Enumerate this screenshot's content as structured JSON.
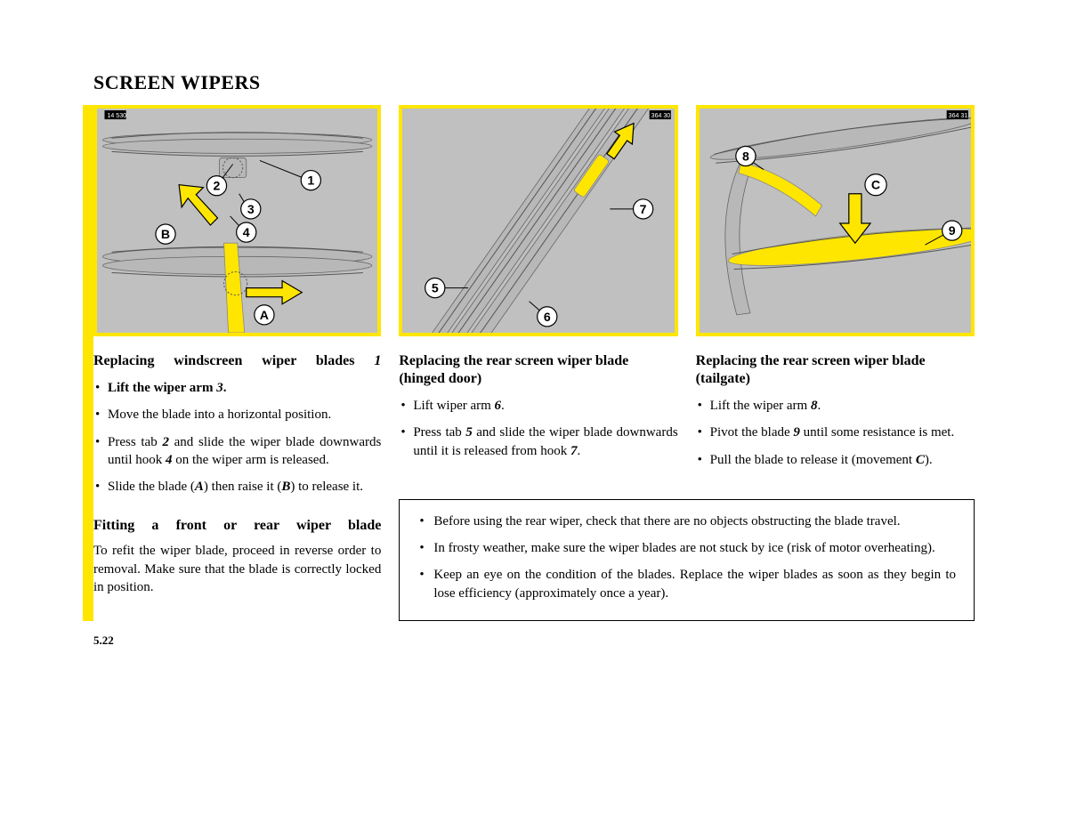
{
  "title": "SCREEN WIPERS",
  "pageNumber": "5.22",
  "col1": {
    "imgRef": "14 530",
    "heading_pre": "Replacing windscreen wiper blades ",
    "heading_num": "1",
    "steps": [
      {
        "html": "<span class=\"bold\">Lift the wiper arm <span class=\"ital\">3</span>.</span>"
      },
      {
        "html": "Move the blade into a horizontal position."
      },
      {
        "html": "Press tab <span class=\"ital\">2</span> and slide the wiper blade downwards until hook <span class=\"ital\">4</span> on the wiper arm is released."
      },
      {
        "html": "Slide the blade (<span class=\"ital\">A</span>) then raise it (<span class=\"ital\">B</span>) to release it."
      }
    ],
    "subheading": "Fitting a front or rear wiper blade",
    "subtext": "To refit the wiper blade, proceed in reverse order to removal. Make sure that the blade is correctly locked in position.",
    "labels": {
      "1": "1",
      "2": "2",
      "3": "3",
      "4": "4",
      "A": "A",
      "B": "B"
    }
  },
  "col2": {
    "imgRef": "364 30",
    "heading": "Replacing the rear screen wiper blade (hinged door)",
    "steps": [
      {
        "html": "Lift wiper arm <span class=\"ital\">6</span>."
      },
      {
        "html": "Press tab <span class=\"ital\">5</span> and slide the wiper blade downwards until it is released from hook <span class=\"ital\">7</span>."
      }
    ],
    "labels": {
      "5": "5",
      "6": "6",
      "7": "7"
    }
  },
  "col3": {
    "imgRef": "364 31",
    "heading": "Replacing the rear screen wiper blade (tailgate)",
    "steps": [
      {
        "html": "Lift the wiper arm <span class=\"ital\">8</span>."
      },
      {
        "html": "Pivot the blade <span class=\"ital\">9</span> until some resistance is met."
      },
      {
        "html": "Pull the blade to release it (movement <span class=\"ital\">C</span>)."
      }
    ],
    "labels": {
      "8": "8",
      "9": "9",
      "C": "C"
    }
  },
  "notes": [
    "Before using the rear wiper, check that there are no objects obstructing the blade travel.",
    "In frosty weather, make sure the wiper blades are not stuck by ice (risk of motor overheating).",
    "Keep an eye on the condition of the blades. Replace the wiper blades as soon as they begin to lose efficiency (approximately once a year)."
  ]
}
